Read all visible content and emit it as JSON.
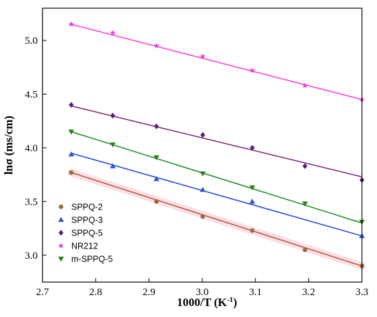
{
  "chart_data": {
    "type": "scatter",
    "xlabel": "1000/T (K",
    "xlabel_sup": "-1",
    "xlabel_suffix": ")",
    "ylabel": "lnσ (ms/cm)",
    "xlim": [
      2.7,
      3.3
    ],
    "ylim": [
      2.75,
      5.3
    ],
    "xticks": [
      "2.7",
      "2.8",
      "2.9",
      "3.0",
      "3.1",
      "3.2",
      "3.3"
    ],
    "yticks": [
      "3.0",
      "3.5",
      "4.0",
      "4.5",
      "5.0"
    ],
    "grid": false,
    "legend_position": "bottom-left",
    "x": [
      2.754,
      2.832,
      2.914,
      3.001,
      3.094,
      3.193,
      3.3
    ],
    "series": [
      {
        "name": "SPPQ-2",
        "marker": "circle",
        "color": "#9c6b3c",
        "line_color": "#b5552a",
        "highlight": "#f7c6d8",
        "values": [
          3.77,
          null,
          3.5,
          3.36,
          3.23,
          3.05,
          2.9
        ],
        "fit": [
          3.77,
          2.9
        ]
      },
      {
        "name": "SPPQ-3",
        "marker": "triangle-up",
        "color": "#2f55d4",
        "line_color": "#1f3fe0",
        "values": [
          3.94,
          3.83,
          3.71,
          3.61,
          3.5,
          null,
          3.18
        ],
        "fit": [
          3.95,
          3.18
        ]
      },
      {
        "name": "SPPQ-5",
        "marker": "diamond",
        "color": "#5a1e78",
        "line_color": "#7a1f6e",
        "values": [
          4.4,
          4.3,
          4.2,
          4.12,
          4.0,
          3.83,
          3.7
        ],
        "fit": [
          4.39,
          3.73
        ]
      },
      {
        "name": "NR212",
        "marker": "star",
        "color": "#e63fd8",
        "line_color": "#ff33e0",
        "values": [
          5.15,
          5.07,
          4.95,
          4.85,
          4.72,
          4.58,
          4.45
        ],
        "fit": [
          5.15,
          4.45
        ]
      },
      {
        "name": "m-SPPQ-5",
        "marker": "triangle-down",
        "color": "#2e7d1e",
        "line_color": "#0e8a1a",
        "values": [
          4.15,
          4.03,
          3.91,
          3.76,
          3.63,
          3.48,
          3.31
        ],
        "fit": [
          4.15,
          3.3
        ]
      }
    ]
  }
}
